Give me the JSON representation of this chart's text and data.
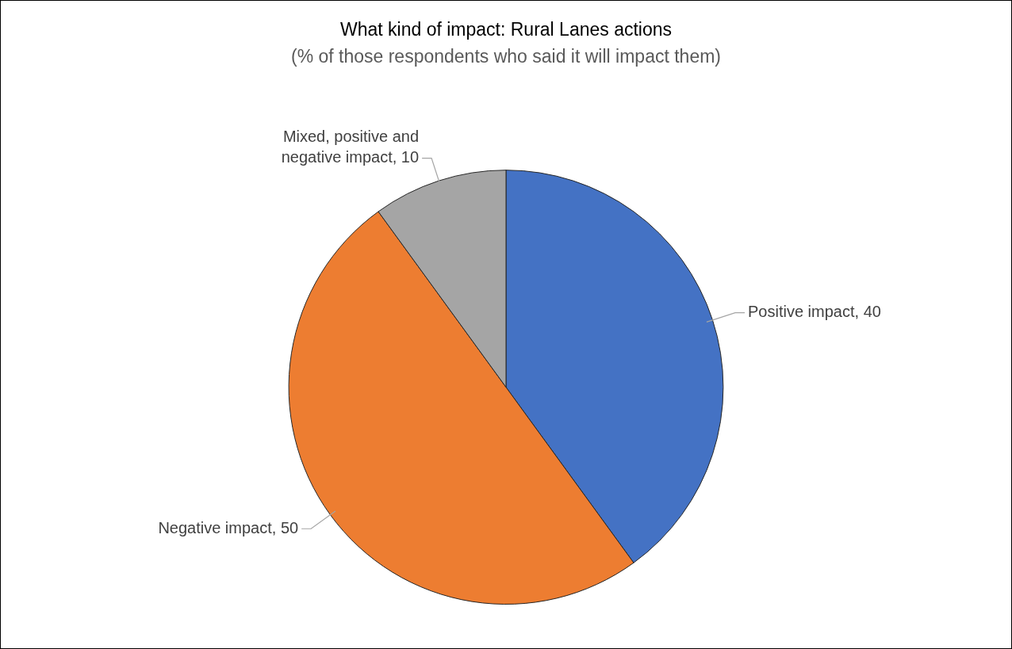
{
  "chart_data": {
    "type": "pie",
    "title": "What kind of impact: Rural Lanes actions",
    "subtitle": "(% of those respondents who said it will impact them)",
    "categories": [
      "Positive impact",
      "Negative impact",
      "Mixed, positive and negative impact"
    ],
    "values": [
      40,
      50,
      10
    ],
    "colors": [
      "#4472c4",
      "#ed7d31",
      "#a5a5a5"
    ],
    "value_labels": [
      ", 40",
      ", 50",
      ", 10"
    ]
  }
}
